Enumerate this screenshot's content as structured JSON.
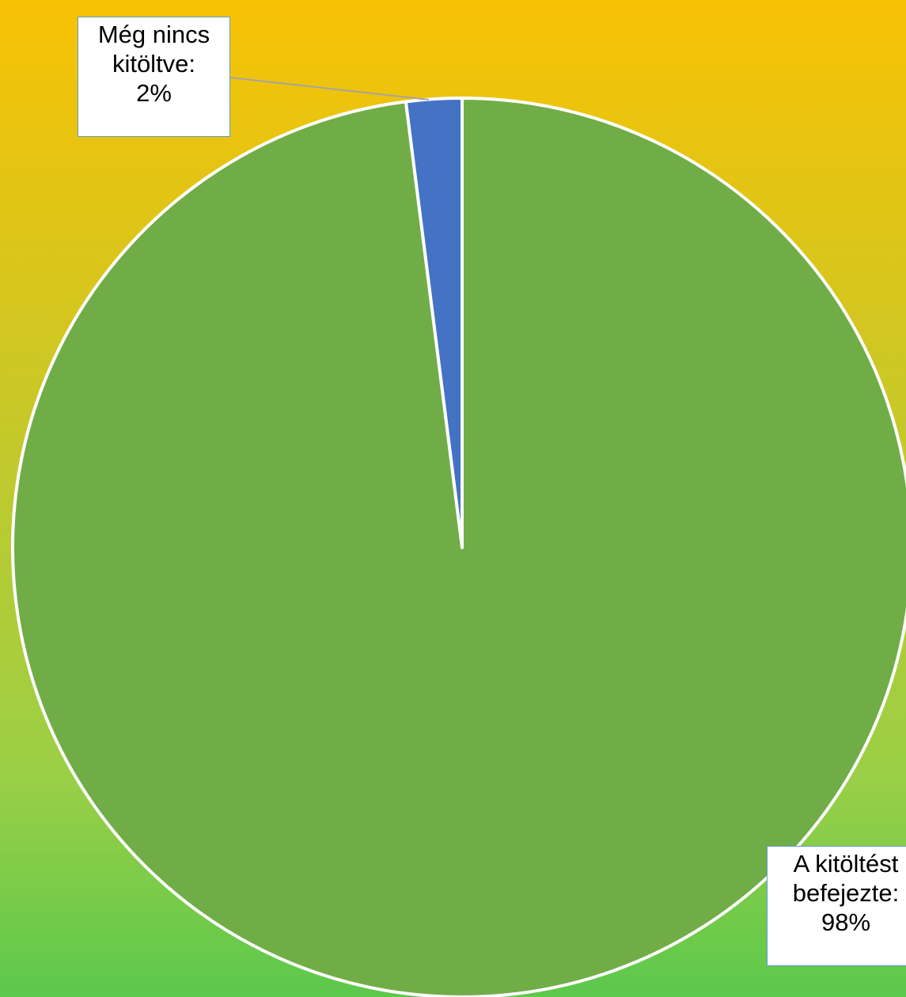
{
  "chart_data": {
    "type": "pie",
    "categories": [
      "Még nincs kitöltve",
      "A kitöltést befejezte"
    ],
    "values": [
      2,
      98
    ],
    "colors": [
      "#4472c4",
      "#70ad47"
    ],
    "data_labels": [
      {
        "line1": "Még nincs",
        "line2": "kitöltve:",
        "line3": "2%"
      },
      {
        "line1": "A kitöltést",
        "line2": "befejezte:",
        "line3": "98%"
      }
    ],
    "background_gradient": [
      "#f8c204",
      "#5cc84c"
    ],
    "slice_border_color": "#ffffff"
  }
}
